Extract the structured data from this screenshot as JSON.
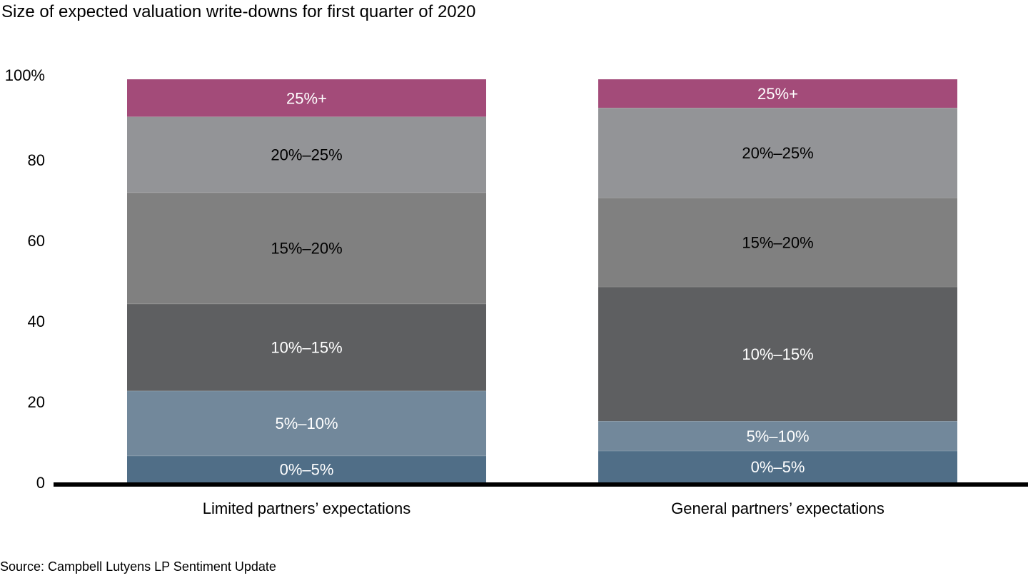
{
  "chart_data": {
    "type": "bar",
    "stacked": true,
    "title": "Size of expected valuation write-downs for first quarter of 2020",
    "xlabel": "",
    "ylabel": "",
    "ylim": [
      0,
      100
    ],
    "y_ticks": [
      "0",
      "20",
      "40",
      "60",
      "80",
      "100%"
    ],
    "y_tick_values": [
      0,
      20,
      40,
      60,
      80,
      100
    ],
    "grid": false,
    "legend": "none (inline segment labels)",
    "categories": [
      "Limited partners’ expectations",
      "General partners’ expectations"
    ],
    "series": [
      {
        "name": "0%–5%",
        "color": "#506e87",
        "label_color": "#ffffff",
        "values": [
          6.6,
          7.8
        ]
      },
      {
        "name": "5%–10%",
        "color": "#72889b",
        "label_color": "#ffffff",
        "values": [
          16.1,
          7.4
        ]
      },
      {
        "name": "10%–15%",
        "color": "#5e5f61",
        "label_color": "#ffffff",
        "values": [
          21.6,
          33.3
        ]
      },
      {
        "name": "15%–20%",
        "color": "#808080",
        "label_color": "#000000",
        "values": [
          27.6,
          22.1
        ]
      },
      {
        "name": "20%–25%",
        "color": "#939497",
        "label_color": "#000000",
        "values": [
          18.8,
          22.3
        ]
      },
      {
        "name": "25%+",
        "color": "#a34b79",
        "label_color": "#ffffff",
        "values": [
          9.3,
          7.1
        ]
      }
    ],
    "source": "Source: Campbell Lutyens LP Sentiment Update"
  }
}
